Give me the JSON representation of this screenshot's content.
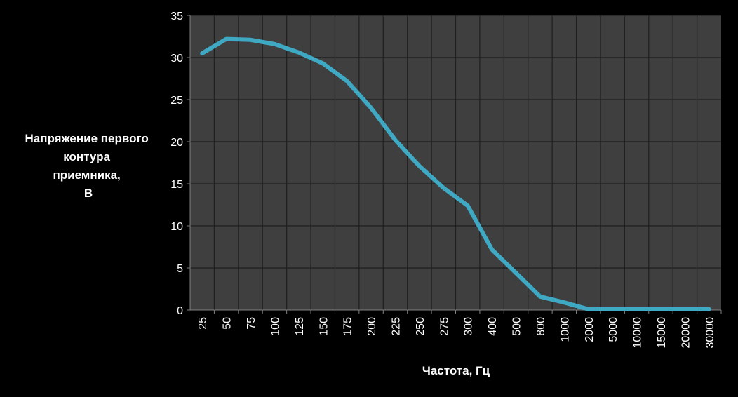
{
  "chart_data": {
    "type": "line",
    "xlabel": "Частота, Гц",
    "ylabel_lines": [
      "Напряжение первого",
      "контура",
      "приемника,",
      "В"
    ],
    "categories": [
      "25",
      "50",
      "75",
      "100",
      "125",
      "150",
      "175",
      "200",
      "225",
      "250",
      "275",
      "300",
      "400",
      "500",
      "800",
      "1000",
      "2000",
      "5000",
      "10000",
      "15000",
      "20000",
      "30000"
    ],
    "series": [
      {
        "values": [
          30.5,
          32.2,
          32.1,
          31.6,
          30.6,
          29.3,
          27.2,
          24.0,
          20.2,
          17.1,
          14.5,
          12.4,
          7.2,
          4.4,
          1.6,
          0.9,
          0.1,
          0.1,
          0.1,
          0.1,
          0.1,
          0.1
        ]
      }
    ],
    "ylim": [
      0,
      35
    ],
    "yticks": [
      "0",
      "5",
      "10",
      "15",
      "20",
      "25",
      "30",
      "35"
    ],
    "grid": true,
    "colors": {
      "plot_background": "#3f3f3f",
      "grid": "#1f1f1f",
      "line": "#3fa9c4",
      "text": "#ffffff",
      "background": "#000000"
    }
  }
}
